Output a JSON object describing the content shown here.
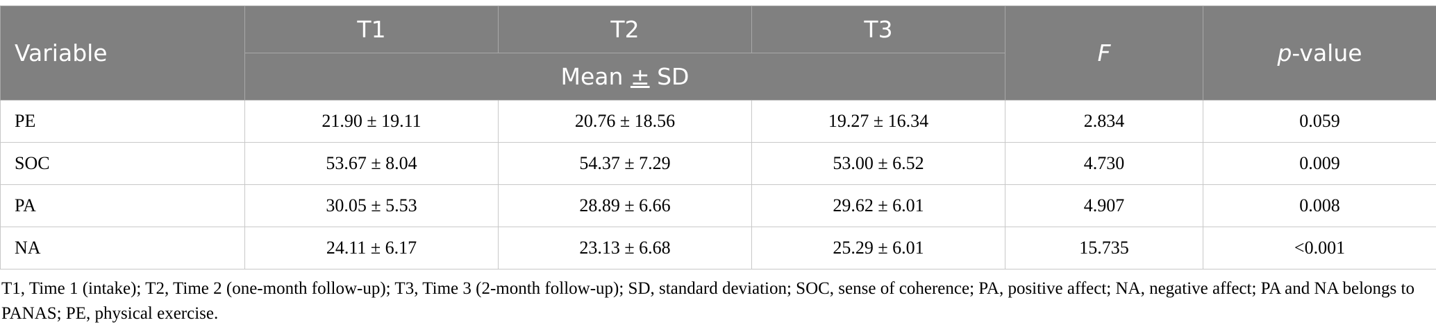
{
  "table": {
    "headers": {
      "variable": "Variable",
      "t1": "T1",
      "t2": "T2",
      "t3": "T3",
      "f": "F",
      "p_italic": "p",
      "p_rest": "-value",
      "mean_sd_pre": "Mean ",
      "mean_sd_pm": "±",
      "mean_sd_post": " SD"
    },
    "rows": [
      {
        "variable": "PE",
        "t1": "21.90 ± 19.11",
        "t2": "20.76 ± 18.56",
        "t3": "19.27 ± 16.34",
        "f": "2.834",
        "p": "0.059"
      },
      {
        "variable": "SOC",
        "t1": "53.67 ± 8.04",
        "t2": "54.37 ± 7.29",
        "t3": "53.00 ± 6.52",
        "f": "4.730",
        "p": "0.009"
      },
      {
        "variable": "PA",
        "t1": "30.05 ± 5.53",
        "t2": "28.89 ± 6.66",
        "t3": "29.62 ± 6.01",
        "f": "4.907",
        "p": "0.008"
      },
      {
        "variable": "NA",
        "t1": "24.11 ± 6.17",
        "t2": "23.13 ± 6.68",
        "t3": "25.29 ± 6.01",
        "f": "15.735",
        "p": "<0.001"
      }
    ]
  },
  "footnote": "T1, Time 1 (intake); T2, Time 2 (one-month follow-up); T3, Time 3 (2-month follow-up); SD, standard deviation; SOC, sense of coherence; PA, positive affect; NA, negative affect; PA and NA belongs to PANAS; PE, physical exercise."
}
